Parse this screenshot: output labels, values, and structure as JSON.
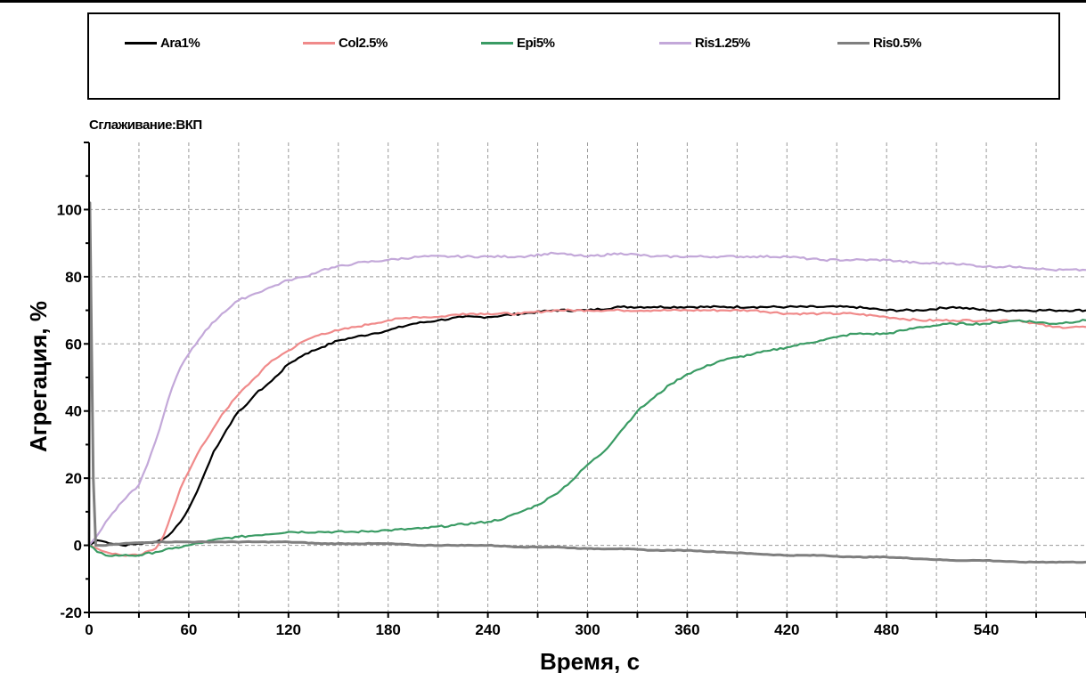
{
  "legend": [
    {
      "name": "Ara1%",
      "color": "#000000"
    },
    {
      "name": "Col2.5%",
      "color": "#f08a8a"
    },
    {
      "name": "Epi5%",
      "color": "#3a9b64"
    },
    {
      "name": "Ris1.25%",
      "color": "#c3a8d9"
    },
    {
      "name": "Ris0.5%",
      "color": "#7f7f7f"
    }
  ],
  "smoothing_label": "Сглаживание:ВКП",
  "chart_data": {
    "type": "line",
    "xlabel": "Время, с",
    "ylabel": "Агрегация, %",
    "xlim": [
      0,
      600
    ],
    "ylim": [
      -20,
      120
    ],
    "xticks": [
      0,
      60,
      120,
      180,
      240,
      300,
      360,
      420,
      480,
      540
    ],
    "yticks": [
      -20,
      0,
      20,
      40,
      60,
      80,
      100
    ],
    "grid": true,
    "legend_position": "top",
    "series": [
      {
        "name": "Ara1%",
        "color": "#000000",
        "x": [
          0,
          5,
          10,
          20,
          30,
          40,
          45,
          50,
          55,
          60,
          65,
          70,
          75,
          80,
          85,
          90,
          95,
          100,
          110,
          120,
          130,
          140,
          150,
          160,
          170,
          180,
          195,
          210,
          225,
          240,
          260,
          280,
          300,
          320,
          340,
          360,
          380,
          400,
          420,
          440,
          460,
          480,
          500,
          520,
          540,
          560,
          580,
          600
        ],
        "y": [
          0,
          1.5,
          1,
          0,
          0.5,
          1,
          2,
          4,
          7,
          11,
          16,
          22,
          28,
          32,
          36,
          40,
          42,
          45,
          49,
          54,
          57,
          59,
          61,
          62,
          63,
          64,
          66,
          67,
          68,
          68,
          69,
          70,
          70,
          71,
          71,
          71,
          71,
          71,
          71,
          71,
          71,
          70,
          70,
          71,
          70,
          70,
          70,
          70
        ]
      },
      {
        "name": "Col2.5%",
        "color": "#f08a8a",
        "x": [
          0,
          5,
          10,
          20,
          30,
          40,
          45,
          50,
          55,
          60,
          65,
          70,
          75,
          80,
          90,
          100,
          110,
          120,
          130,
          140,
          150,
          160,
          170,
          180,
          195,
          210,
          225,
          240,
          260,
          280,
          300,
          320,
          340,
          360,
          380,
          400,
          420,
          440,
          460,
          480,
          500,
          520,
          540,
          560,
          580,
          600
        ],
        "y": [
          0,
          -1,
          -2,
          -3,
          -3,
          -1,
          3,
          10,
          17,
          22,
          27,
          31,
          35,
          39,
          45,
          50,
          55,
          58,
          61,
          63,
          64,
          65,
          66,
          67,
          68,
          68,
          69,
          69,
          69,
          70,
          70,
          70,
          70,
          70,
          70,
          70,
          69,
          69,
          69,
          68,
          67,
          67,
          67,
          67,
          65,
          65
        ]
      },
      {
        "name": "Epi5%",
        "color": "#3a9b64",
        "x": [
          0,
          5,
          10,
          20,
          30,
          40,
          50,
          60,
          70,
          80,
          90,
          100,
          120,
          140,
          160,
          180,
          200,
          220,
          240,
          250,
          260,
          270,
          280,
          290,
          300,
          310,
          320,
          330,
          340,
          350,
          360,
          370,
          380,
          390,
          400,
          410,
          420,
          430,
          440,
          450,
          460,
          470,
          480,
          490,
          500,
          520,
          540,
          560,
          580,
          600
        ],
        "y": [
          0,
          -2,
          -3,
          -3,
          -3,
          -2,
          -1,
          0,
          1,
          2,
          2.5,
          3,
          4,
          4,
          4,
          4.5,
          5,
          6,
          7,
          8,
          10,
          12,
          15,
          19,
          24,
          28,
          34,
          40,
          44,
          48,
          51,
          53,
          55,
          56,
          57,
          58,
          59,
          60,
          61,
          62,
          63,
          63,
          63,
          64,
          65,
          66,
          66,
          67,
          66,
          67
        ]
      },
      {
        "name": "Ris1.25%",
        "color": "#c3a8d9",
        "x": [
          0,
          5,
          10,
          20,
          30,
          35,
          40,
          45,
          50,
          55,
          60,
          70,
          80,
          90,
          100,
          110,
          120,
          130,
          140,
          160,
          180,
          200,
          220,
          240,
          260,
          280,
          300,
          320,
          340,
          360,
          380,
          400,
          420,
          440,
          460,
          480,
          500,
          520,
          540,
          560,
          580,
          600
        ],
        "y": [
          0,
          3,
          7,
          13,
          18,
          24,
          31,
          39,
          47,
          53,
          57,
          64,
          69,
          73,
          75,
          77,
          79,
          80,
          82,
          84,
          85,
          86,
          86,
          86,
          86,
          87,
          86,
          87,
          86,
          86,
          86,
          86,
          86,
          85,
          85,
          85,
          84,
          84,
          83,
          83,
          82,
          82
        ]
      },
      {
        "name": "Ris0.5%",
        "color": "#7f7f7f",
        "x": [
          0,
          0.5,
          1.5,
          2.5,
          4,
          6,
          10,
          20,
          40,
          60,
          80,
          100,
          120,
          140,
          160,
          180,
          200,
          220,
          240,
          260,
          280,
          300,
          320,
          340,
          360,
          380,
          400,
          420,
          440,
          460,
          480,
          500,
          520,
          540,
          560,
          580,
          600
        ],
        "y": [
          0,
          102,
          60,
          20,
          0,
          0,
          0,
          0.5,
          1,
          1,
          1,
          1,
          1,
          0.5,
          0.5,
          0.5,
          0,
          0,
          0,
          -0.5,
          -0.5,
          -1,
          -1,
          -1.5,
          -1.5,
          -2,
          -2.5,
          -3,
          -3,
          -3.5,
          -3.5,
          -4,
          -4.5,
          -4.5,
          -5,
          -5,
          -5
        ]
      }
    ]
  }
}
